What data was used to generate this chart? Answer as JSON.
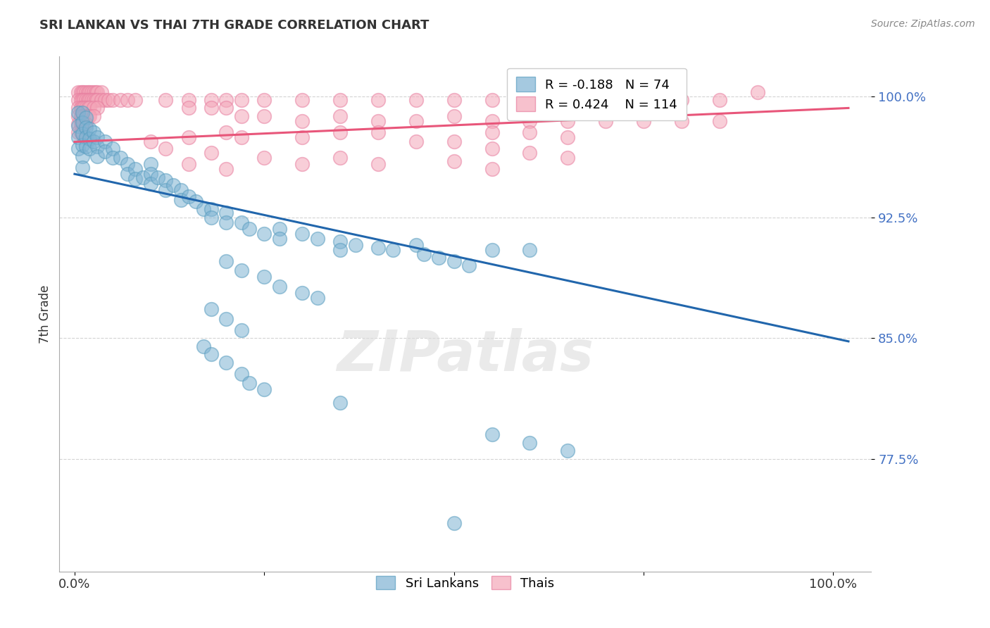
{
  "title": "SRI LANKAN VS THAI 7TH GRADE CORRELATION CHART",
  "source_text": "Source: ZipAtlas.com",
  "ylabel": "7th Grade",
  "xlim": [
    -0.02,
    1.05
  ],
  "ylim": [
    0.705,
    1.025
  ],
  "yticks": [
    0.775,
    0.85,
    0.925,
    1.0
  ],
  "ytick_labels": [
    "77.5%",
    "85.0%",
    "92.5%",
    "100.0%"
  ],
  "xticks": [
    0.0,
    0.25,
    0.5,
    0.75,
    1.0
  ],
  "xtick_labels": [
    "0.0%",
    "",
    "",
    "",
    "100.0%"
  ],
  "sri_lankan_color": "#7fb3d3",
  "sri_lankan_edge": "#5a9ec0",
  "thai_color": "#f4a7b9",
  "thai_edge": "#e87fa0",
  "sri_line_color": "#2166ac",
  "thai_line_color": "#e8567a",
  "sri_lankan_R": -0.188,
  "sri_lankan_N": 74,
  "thai_R": 0.424,
  "thai_N": 114,
  "background_color": "#ffffff",
  "grid_color": "#c8c8c8",
  "watermark_text": "ZIPatlas",
  "legend_label_sri": "Sri Lankans",
  "legend_label_thai": "Thais",
  "sri_line_x0": 0.0,
  "sri_line_y0": 0.952,
  "sri_line_x1": 1.02,
  "sri_line_y1": 0.848,
  "thai_line_x0": 0.0,
  "thai_line_y0": 0.972,
  "thai_line_x1": 1.02,
  "thai_line_y1": 0.993,
  "sri_lankan_points": [
    [
      0.005,
      0.99
    ],
    [
      0.005,
      0.982
    ],
    [
      0.005,
      0.975
    ],
    [
      0.005,
      0.968
    ],
    [
      0.01,
      0.99
    ],
    [
      0.01,
      0.984
    ],
    [
      0.01,
      0.977
    ],
    [
      0.01,
      0.97
    ],
    [
      0.01,
      0.963
    ],
    [
      0.01,
      0.956
    ],
    [
      0.015,
      0.987
    ],
    [
      0.015,
      0.981
    ],
    [
      0.015,
      0.975
    ],
    [
      0.015,
      0.969
    ],
    [
      0.02,
      0.98
    ],
    [
      0.02,
      0.974
    ],
    [
      0.02,
      0.968
    ],
    [
      0.025,
      0.978
    ],
    [
      0.025,
      0.972
    ],
    [
      0.03,
      0.975
    ],
    [
      0.03,
      0.969
    ],
    [
      0.03,
      0.963
    ],
    [
      0.04,
      0.972
    ],
    [
      0.04,
      0.966
    ],
    [
      0.05,
      0.968
    ],
    [
      0.05,
      0.962
    ],
    [
      0.06,
      0.962
    ],
    [
      0.07,
      0.958
    ],
    [
      0.07,
      0.952
    ],
    [
      0.08,
      0.955
    ],
    [
      0.08,
      0.949
    ],
    [
      0.09,
      0.95
    ],
    [
      0.1,
      0.958
    ],
    [
      0.1,
      0.952
    ],
    [
      0.1,
      0.946
    ],
    [
      0.11,
      0.95
    ],
    [
      0.12,
      0.948
    ],
    [
      0.12,
      0.942
    ],
    [
      0.13,
      0.945
    ],
    [
      0.14,
      0.942
    ],
    [
      0.14,
      0.936
    ],
    [
      0.15,
      0.938
    ],
    [
      0.16,
      0.935
    ],
    [
      0.17,
      0.93
    ],
    [
      0.18,
      0.93
    ],
    [
      0.18,
      0.925
    ],
    [
      0.2,
      0.928
    ],
    [
      0.2,
      0.922
    ],
    [
      0.22,
      0.922
    ],
    [
      0.23,
      0.918
    ],
    [
      0.25,
      0.915
    ],
    [
      0.27,
      0.918
    ],
    [
      0.27,
      0.912
    ],
    [
      0.3,
      0.915
    ],
    [
      0.32,
      0.912
    ],
    [
      0.35,
      0.91
    ],
    [
      0.35,
      0.905
    ],
    [
      0.37,
      0.908
    ],
    [
      0.4,
      0.906
    ],
    [
      0.42,
      0.905
    ],
    [
      0.45,
      0.908
    ],
    [
      0.46,
      0.902
    ],
    [
      0.48,
      0.9
    ],
    [
      0.5,
      0.898
    ],
    [
      0.52,
      0.895
    ],
    [
      0.55,
      0.905
    ],
    [
      0.6,
      0.905
    ],
    [
      0.2,
      0.898
    ],
    [
      0.22,
      0.892
    ],
    [
      0.25,
      0.888
    ],
    [
      0.27,
      0.882
    ],
    [
      0.3,
      0.878
    ],
    [
      0.32,
      0.875
    ],
    [
      0.18,
      0.868
    ],
    [
      0.2,
      0.862
    ],
    [
      0.22,
      0.855
    ],
    [
      0.17,
      0.845
    ],
    [
      0.18,
      0.84
    ],
    [
      0.2,
      0.835
    ],
    [
      0.22,
      0.828
    ],
    [
      0.23,
      0.822
    ],
    [
      0.25,
      0.818
    ],
    [
      0.35,
      0.81
    ],
    [
      0.55,
      0.79
    ],
    [
      0.6,
      0.785
    ],
    [
      0.65,
      0.78
    ],
    [
      0.5,
      0.735
    ]
  ],
  "thai_points": [
    [
      0.005,
      1.003
    ],
    [
      0.008,
      1.003
    ],
    [
      0.01,
      1.003
    ],
    [
      0.012,
      1.003
    ],
    [
      0.015,
      1.003
    ],
    [
      0.018,
      1.003
    ],
    [
      0.02,
      1.003
    ],
    [
      0.022,
      1.003
    ],
    [
      0.025,
      1.003
    ],
    [
      0.028,
      1.003
    ],
    [
      0.03,
      1.003
    ],
    [
      0.035,
      1.003
    ],
    [
      0.005,
      0.998
    ],
    [
      0.008,
      0.998
    ],
    [
      0.01,
      0.998
    ],
    [
      0.012,
      0.998
    ],
    [
      0.015,
      0.998
    ],
    [
      0.018,
      0.998
    ],
    [
      0.02,
      0.998
    ],
    [
      0.022,
      0.998
    ],
    [
      0.025,
      0.998
    ],
    [
      0.028,
      0.998
    ],
    [
      0.03,
      0.998
    ],
    [
      0.035,
      0.998
    ],
    [
      0.04,
      0.998
    ],
    [
      0.045,
      0.998
    ],
    [
      0.005,
      0.993
    ],
    [
      0.008,
      0.993
    ],
    [
      0.01,
      0.993
    ],
    [
      0.012,
      0.993
    ],
    [
      0.015,
      0.993
    ],
    [
      0.018,
      0.993
    ],
    [
      0.02,
      0.993
    ],
    [
      0.025,
      0.993
    ],
    [
      0.03,
      0.993
    ],
    [
      0.005,
      0.988
    ],
    [
      0.008,
      0.988
    ],
    [
      0.01,
      0.988
    ],
    [
      0.012,
      0.988
    ],
    [
      0.015,
      0.988
    ],
    [
      0.018,
      0.988
    ],
    [
      0.02,
      0.988
    ],
    [
      0.025,
      0.988
    ],
    [
      0.005,
      0.983
    ],
    [
      0.008,
      0.983
    ],
    [
      0.01,
      0.983
    ],
    [
      0.012,
      0.983
    ],
    [
      0.015,
      0.983
    ],
    [
      0.005,
      0.978
    ],
    [
      0.008,
      0.978
    ],
    [
      0.01,
      0.978
    ],
    [
      0.05,
      0.998
    ],
    [
      0.06,
      0.998
    ],
    [
      0.07,
      0.998
    ],
    [
      0.08,
      0.998
    ],
    [
      0.12,
      0.998
    ],
    [
      0.15,
      0.998
    ],
    [
      0.18,
      0.998
    ],
    [
      0.2,
      0.998
    ],
    [
      0.22,
      0.998
    ],
    [
      0.25,
      0.998
    ],
    [
      0.3,
      0.998
    ],
    [
      0.35,
      0.998
    ],
    [
      0.4,
      0.998
    ],
    [
      0.45,
      0.998
    ],
    [
      0.5,
      0.998
    ],
    [
      0.55,
      0.998
    ],
    [
      0.6,
      0.998
    ],
    [
      0.65,
      0.998
    ],
    [
      0.7,
      0.998
    ],
    [
      0.8,
      0.998
    ],
    [
      0.85,
      0.998
    ],
    [
      0.9,
      1.003
    ],
    [
      0.15,
      0.993
    ],
    [
      0.18,
      0.993
    ],
    [
      0.2,
      0.993
    ],
    [
      0.22,
      0.988
    ],
    [
      0.25,
      0.988
    ],
    [
      0.3,
      0.985
    ],
    [
      0.35,
      0.988
    ],
    [
      0.4,
      0.985
    ],
    [
      0.45,
      0.985
    ],
    [
      0.5,
      0.988
    ],
    [
      0.55,
      0.985
    ],
    [
      0.6,
      0.985
    ],
    [
      0.65,
      0.985
    ],
    [
      0.7,
      0.985
    ],
    [
      0.75,
      0.985
    ],
    [
      0.8,
      0.985
    ],
    [
      0.85,
      0.985
    ],
    [
      0.55,
      0.978
    ],
    [
      0.6,
      0.978
    ],
    [
      0.65,
      0.975
    ],
    [
      0.3,
      0.975
    ],
    [
      0.35,
      0.978
    ],
    [
      0.4,
      0.978
    ],
    [
      0.45,
      0.972
    ],
    [
      0.5,
      0.972
    ],
    [
      0.2,
      0.978
    ],
    [
      0.22,
      0.975
    ],
    [
      0.15,
      0.975
    ],
    [
      0.1,
      0.972
    ],
    [
      0.12,
      0.968
    ],
    [
      0.55,
      0.968
    ],
    [
      0.6,
      0.965
    ],
    [
      0.65,
      0.962
    ],
    [
      0.18,
      0.965
    ],
    [
      0.25,
      0.962
    ],
    [
      0.3,
      0.958
    ],
    [
      0.35,
      0.962
    ],
    [
      0.4,
      0.958
    ],
    [
      0.5,
      0.96
    ],
    [
      0.55,
      0.955
    ],
    [
      0.15,
      0.958
    ],
    [
      0.2,
      0.955
    ]
  ]
}
